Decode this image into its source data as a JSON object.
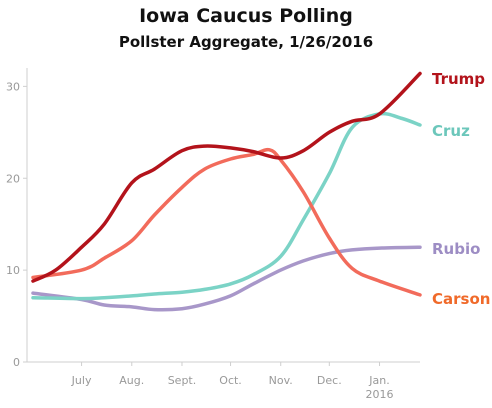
{
  "chart_data": {
    "type": "line",
    "title": "Iowa Caucus Polling",
    "subtitle": "Pollster Aggregate, 1/26/2016",
    "xlabel": "",
    "ylabel": "",
    "ylim": [
      0,
      32
    ],
    "yticks": [
      0,
      10,
      20,
      30
    ],
    "xrange": [
      "2015-06-01",
      "2016-01-26"
    ],
    "xtick_labels": [
      {
        "date": "2015-07-01",
        "label": "July"
      },
      {
        "date": "2015-08-01",
        "label": "Aug."
      },
      {
        "date": "2015-09-01",
        "label": "Sept."
      },
      {
        "date": "2015-10-01",
        "label": "Oct."
      },
      {
        "date": "2015-11-01",
        "label": "Nov."
      },
      {
        "date": "2015-12-01",
        "label": "Dec."
      },
      {
        "date": "2016-01-01",
        "label": "Jan.",
        "sublabel": "2016"
      }
    ],
    "grid": false,
    "legend": "direct labels at right end of lines",
    "series": [
      {
        "name": "Trump",
        "color": "#b3131b",
        "x": [
          "2015-06-01",
          "2015-06-15",
          "2015-07-01",
          "2015-07-15",
          "2015-08-01",
          "2015-08-15",
          "2015-09-01",
          "2015-09-15",
          "2015-10-01",
          "2015-10-15",
          "2015-11-01",
          "2015-11-15",
          "2015-12-01",
          "2015-12-15",
          "2016-01-01",
          "2016-01-26"
        ],
        "values": [
          8.8,
          10.0,
          12.5,
          15.0,
          19.5,
          21.0,
          23.0,
          23.5,
          23.3,
          22.9,
          22.2,
          23.0,
          25.0,
          26.2,
          27.0,
          31.4
        ]
      },
      {
        "name": "Cruz",
        "color": "#7bd3c6",
        "x": [
          "2015-06-01",
          "2015-07-01",
          "2015-07-15",
          "2015-08-01",
          "2015-08-15",
          "2015-09-01",
          "2015-09-15",
          "2015-10-01",
          "2015-10-15",
          "2015-11-01",
          "2015-11-15",
          "2015-12-01",
          "2015-12-15",
          "2016-01-01",
          "2016-01-15",
          "2016-01-26"
        ],
        "values": [
          7.0,
          6.9,
          7.0,
          7.2,
          7.4,
          7.6,
          7.9,
          8.5,
          9.5,
          11.5,
          15.5,
          20.5,
          25.5,
          27.0,
          26.5,
          25.8
        ]
      },
      {
        "name": "Rubio",
        "color": "#a897c9",
        "x": [
          "2015-06-01",
          "2015-07-01",
          "2015-07-15",
          "2015-08-01",
          "2015-08-15",
          "2015-09-01",
          "2015-09-15",
          "2015-10-01",
          "2015-10-15",
          "2015-11-01",
          "2015-11-15",
          "2015-12-01",
          "2015-12-15",
          "2016-01-01",
          "2016-01-26"
        ],
        "values": [
          7.5,
          6.8,
          6.2,
          6.0,
          5.7,
          5.8,
          6.3,
          7.2,
          8.5,
          10.0,
          11.0,
          11.8,
          12.2,
          12.4,
          12.5
        ]
      },
      {
        "name": "Carson",
        "color": "#f26b5b",
        "x": [
          "2015-06-01",
          "2015-07-01",
          "2015-07-15",
          "2015-08-01",
          "2015-08-15",
          "2015-09-01",
          "2015-09-15",
          "2015-10-01",
          "2015-10-15",
          "2015-10-25",
          "2015-11-01",
          "2015-11-15",
          "2015-12-01",
          "2015-12-15",
          "2016-01-01",
          "2016-01-26"
        ],
        "values": [
          9.2,
          10.0,
          11.3,
          13.2,
          16.0,
          19.0,
          21.0,
          22.1,
          22.6,
          23.1,
          22.0,
          18.5,
          13.5,
          10.2,
          8.8,
          7.3
        ]
      }
    ],
    "series_label_colors": {
      "Trump": "#b3131b",
      "Cruz": "#6cc7bb",
      "Rubio": "#9d8dc4",
      "Carson": "#f06a2a"
    },
    "axis_color": "#cfcfcf",
    "tick_label_color": "#999999"
  }
}
